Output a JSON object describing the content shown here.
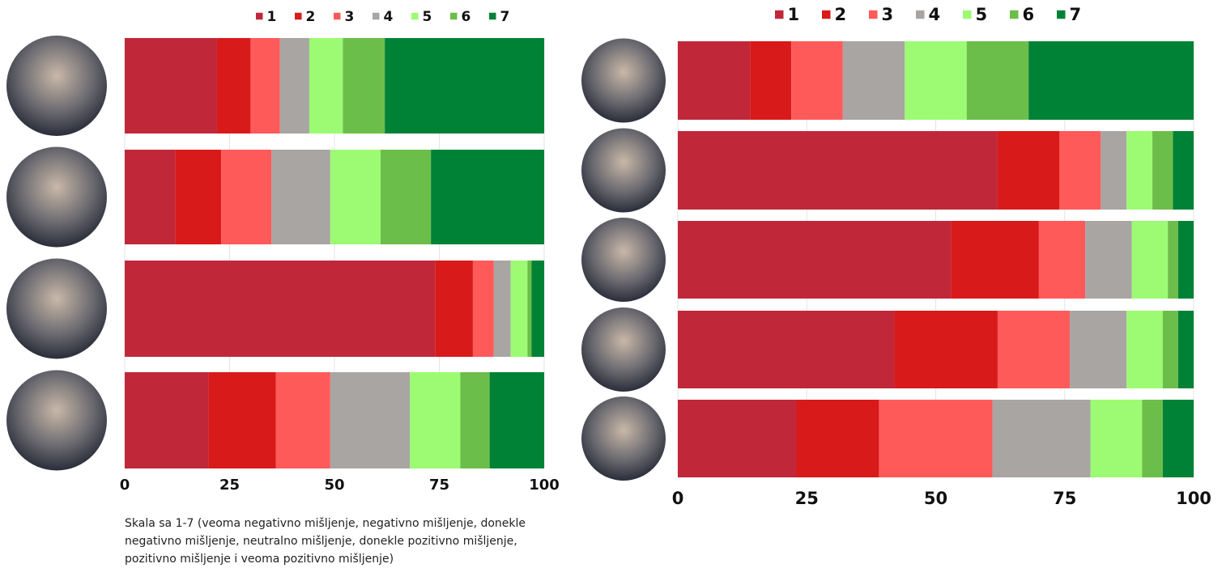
{
  "chart_data": [
    {
      "type": "bar",
      "orientation": "horizontal",
      "stacked": true,
      "xlim": [
        0,
        100
      ],
      "xticks": [
        0,
        25,
        50,
        75,
        100
      ],
      "grid": true,
      "note": "Skala sa 1-7 (veoma negativno mišljenje, negativno mišljenje, donekle negativno mišljenje, neutralno mišljenje, donekle pozitivno mišljenje, pozitivno mišljenje i veoma pozitivno mišljenje)",
      "series": [
        {
          "name": "1",
          "color": "#c0283a",
          "values": [
            22,
            12,
            74,
            20
          ]
        },
        {
          "name": "2",
          "color": "#d91a1a",
          "values": [
            8,
            11,
            9,
            16
          ]
        },
        {
          "name": "3",
          "color": "#ff5a5a",
          "values": [
            7,
            12,
            5,
            13
          ]
        },
        {
          "name": "4",
          "color": "#a8a5a3",
          "values": [
            7,
            14,
            4,
            19
          ]
        },
        {
          "name": "5",
          "color": "#9cfb73",
          "values": [
            8,
            12,
            4,
            12
          ]
        },
        {
          "name": "6",
          "color": "#6cbe4a",
          "values": [
            10,
            12,
            1,
            7
          ]
        },
        {
          "name": "7",
          "color": "#008236",
          "values": [
            38,
            27,
            3,
            13
          ]
        }
      ]
    },
    {
      "type": "bar",
      "orientation": "horizontal",
      "stacked": true,
      "xlim": [
        0,
        100
      ],
      "xticks": [
        0,
        25,
        50,
        75,
        100
      ],
      "grid": true,
      "series": [
        {
          "name": "1",
          "color": "#c0283a",
          "values": [
            14,
            62,
            53,
            42,
            23
          ]
        },
        {
          "name": "2",
          "color": "#d91a1a",
          "values": [
            8,
            12,
            17,
            20,
            16
          ]
        },
        {
          "name": "3",
          "color": "#ff5a5a",
          "values": [
            10,
            8,
            9,
            14,
            22
          ]
        },
        {
          "name": "4",
          "color": "#a8a5a3",
          "values": [
            12,
            5,
            9,
            11,
            19
          ]
        },
        {
          "name": "5",
          "color": "#9cfb73",
          "values": [
            12,
            5,
            7,
            7,
            10
          ]
        },
        {
          "name": "6",
          "color": "#6cbe4a",
          "values": [
            12,
            4,
            2,
            3,
            4
          ]
        },
        {
          "name": "7",
          "color": "#008236",
          "values": [
            32,
            4,
            3,
            3,
            6
          ]
        }
      ]
    }
  ]
}
